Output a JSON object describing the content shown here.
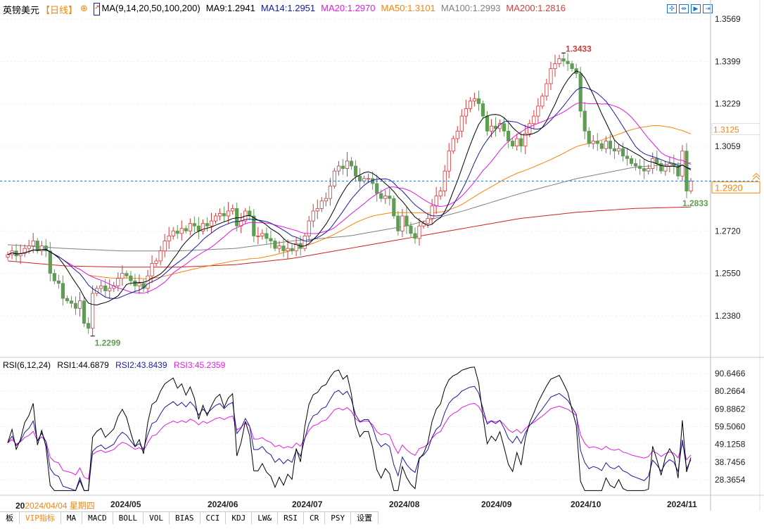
{
  "header": {
    "symbol": "英镑美元",
    "period": "【日线】",
    "ma_label": "MA(9,14,20,50,100,200)",
    "ma9": "MA9:1.2941",
    "ma14": "MA14:1.2951",
    "ma20": "MA20:1.2970",
    "ma50": "MA50:1.3101",
    "ma100": "MA100:1.2993",
    "ma200": "MA200:1.2816"
  },
  "colors": {
    "up": "#d0393a",
    "down": "#5e9e52",
    "ma9": "#000000",
    "ma14": "#1a1a9e",
    "ma20": "#e619e6",
    "ma50": "#f7840c",
    "ma100": "#808080",
    "ma200": "#d02020",
    "rsi1": "#000000",
    "rsi2": "#1a1a9e",
    "rsi3": "#e619e6",
    "current": "#1a73c8"
  },
  "rsi_header": {
    "label": "RSI(6,12,24)",
    "rsi1": "RSI1:44.6879",
    "rsi2": "RSI2:43.8439",
    "rsi3": "RSI3:45.2359"
  },
  "annotations": {
    "high": "1.3433",
    "low": "1.2299",
    "last_low": "1.2833",
    "ma50_tag": "1.3125",
    "current_price": "1.2920"
  },
  "cursor_date": "2024/04/04 星期四",
  "cursor_date_prefix": "20",
  "tabs": [
    "VIP指标",
    "MA",
    "MACD",
    "BOLL",
    "VOL",
    "BIAS",
    "CCI",
    "KDJ",
    "LW&",
    "RSI",
    "CR",
    "PSY",
    "设置"
  ],
  "chart_data": [
    {
      "type": "candlestick",
      "title": "英镑美元",
      "ylim": [
        1.22,
        1.3569
      ],
      "yticks": [
        "1.3569",
        "1.3399",
        "1.3229",
        "1.3059",
        "1.2720",
        "1.2550",
        "1.2380"
      ],
      "xticks": [
        "2024/05",
        "2024/06",
        "2024/07",
        "2024/08",
        "2024/09",
        "2024/10",
        "2024/11"
      ],
      "closes": [
        1.2625,
        1.264,
        1.262,
        1.263,
        1.265,
        1.266,
        1.268,
        1.264,
        1.266,
        1.264,
        1.255,
        1.252,
        1.251,
        1.245,
        1.244,
        1.243,
        1.241,
        1.244,
        1.235,
        1.233,
        1.247,
        1.249,
        1.25,
        1.248,
        1.249,
        1.25,
        1.253,
        1.255,
        1.254,
        1.252,
        1.25,
        1.251,
        1.249,
        1.254,
        1.259,
        1.26,
        1.264,
        1.268,
        1.27,
        1.272,
        1.271,
        1.273,
        1.272,
        1.275,
        1.274,
        1.272,
        1.275,
        1.274,
        1.276,
        1.278,
        1.279,
        1.278,
        1.28,
        1.281,
        1.274,
        1.276,
        1.28,
        1.278,
        1.27,
        1.27,
        1.271,
        1.269,
        1.268,
        1.265,
        1.266,
        1.264,
        1.265,
        1.264,
        1.267,
        1.265,
        1.27,
        1.276,
        1.28,
        1.281,
        1.284,
        1.285,
        1.29,
        1.296,
        1.298,
        1.297,
        1.3,
        1.298,
        1.294,
        1.292,
        1.293,
        1.293,
        1.291,
        1.287,
        1.285,
        1.286,
        1.285,
        1.278,
        1.272,
        1.278,
        1.274,
        1.271,
        1.269,
        1.274,
        1.275,
        1.277,
        1.282,
        1.286,
        1.288,
        1.296,
        1.304,
        1.309,
        1.312,
        1.318,
        1.321,
        1.324,
        1.325,
        1.323,
        1.318,
        1.312,
        1.314,
        1.313,
        1.315,
        1.312,
        1.308,
        1.306,
        1.309,
        1.306,
        1.311,
        1.315,
        1.318,
        1.322,
        1.326,
        1.331,
        1.337,
        1.339,
        1.341,
        1.34,
        1.339,
        1.337,
        1.335,
        1.32,
        1.312,
        1.307,
        1.308,
        1.307,
        1.305,
        1.308,
        1.305,
        1.304,
        1.305,
        1.302,
        1.301,
        1.299,
        1.298,
        1.297,
        1.296,
        1.297,
        1.301,
        1.299,
        1.296,
        1.298,
        1.299,
        1.298,
        1.294,
        1.304,
        1.288,
        1.292
      ],
      "ma100_points": [
        1.2665,
        1.265,
        1.264,
        1.264,
        1.265,
        1.268,
        1.27,
        1.274,
        1.28,
        1.287,
        1.293,
        1.2975,
        1.2993
      ],
      "ma200_points": [
        1.26,
        1.258,
        1.2575,
        1.2575,
        1.2585,
        1.261,
        1.265,
        1.269,
        1.273,
        1.277,
        1.2795,
        1.281,
        1.2816
      ]
    },
    {
      "type": "line",
      "title": "RSI(6,12,24)",
      "ylim": [
        28.3654,
        90.6466
      ],
      "yticks": [
        "90.6466",
        "80.2664",
        "69.8862",
        "59.5060",
        "49.1258",
        "38.7456",
        "28.3654"
      ],
      "series": [
        {
          "name": "RSI1",
          "period": 6
        },
        {
          "name": "RSI2",
          "period": 12
        },
        {
          "name": "RSI3",
          "period": 24
        }
      ]
    }
  ]
}
